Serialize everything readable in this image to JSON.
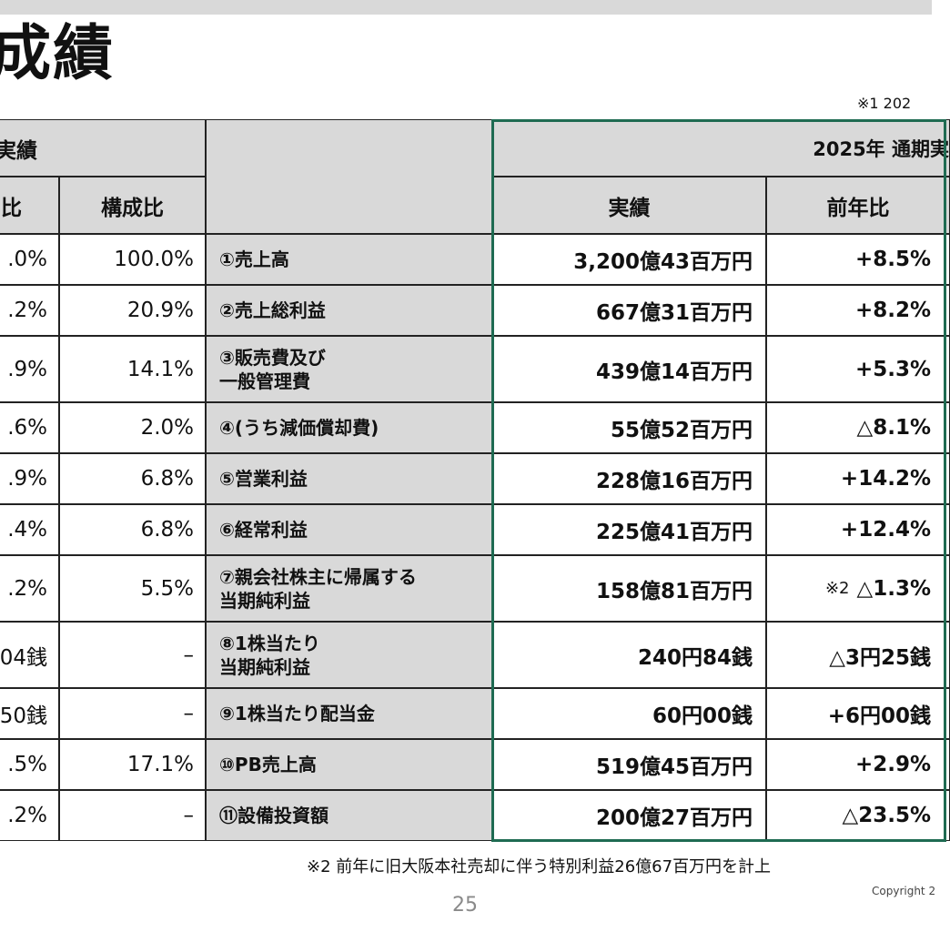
{
  "header": {
    "title": "成績",
    "note1": "※1 202",
    "note2": "※2 前年に旧大阪本社売却に伴う特別利益26億67百万円を計上",
    "page_number": "25",
    "copyright": "Copyright 2"
  },
  "table": {
    "left_group_header": "実績",
    "left_col1_header": "比",
    "left_col2_header": "構成比",
    "right_group_header": "2025年 通期実",
    "right_col1_header": "実績",
    "right_col2_header": "前年比",
    "rows": [
      {
        "left1": ".0%",
        "left2": "100.0%",
        "label_line1": "①売上高",
        "label_line2": "",
        "actual": "3,200億43百万円",
        "yoy_note": "",
        "yoy": "+8.5%"
      },
      {
        "left1": ".2%",
        "left2": "20.9%",
        "label_line1": "②売上総利益",
        "label_line2": "",
        "actual": "667億31百万円",
        "yoy_note": "",
        "yoy": "+8.2%"
      },
      {
        "left1": ".9%",
        "left2": "14.1%",
        "label_line1": "③販売費及び",
        "label_line2": "一般管理費",
        "actual": "439億14百万円",
        "yoy_note": "",
        "yoy": "+5.3%"
      },
      {
        "left1": ".6%",
        "left2": "2.0%",
        "label_line1": "④(うち減価償却費)",
        "label_line2": "",
        "actual": "55億52百万円",
        "yoy_note": "",
        "yoy": "△8.1%"
      },
      {
        "left1": ".9%",
        "left2": "6.8%",
        "label_line1": "⑤営業利益",
        "label_line2": "",
        "actual": "228億16百万円",
        "yoy_note": "",
        "yoy": "+14.2%"
      },
      {
        "left1": ".4%",
        "left2": "6.8%",
        "label_line1": "⑥経常利益",
        "label_line2": "",
        "actual": "225億41百万円",
        "yoy_note": "",
        "yoy": "+12.4%"
      },
      {
        "left1": ".2%",
        "left2": "5.5%",
        "label_line1": "⑦親会社株主に帰属する",
        "label_line2": "当期純利益",
        "actual": "158億81百万円",
        "yoy_note": "※2",
        "yoy": "△1.3%"
      },
      {
        "left1": "04銭",
        "left2": "–",
        "label_line1": "⑧1株当たり",
        "label_line2": "当期純利益",
        "actual": "240円84銭",
        "yoy_note": "",
        "yoy": "△3円25銭"
      },
      {
        "left1": "50銭",
        "left2": "–",
        "label_line1": "⑨1株当たり配当金",
        "label_line2": "",
        "actual": "60円00銭",
        "yoy_note": "",
        "yoy": "+6円00銭"
      },
      {
        "left1": ".5%",
        "left2": "17.1%",
        "label_line1": "⑩PB売上高",
        "label_line2": "",
        "actual": "519億45百万円",
        "yoy_note": "",
        "yoy": "+2.9%"
      },
      {
        "left1": ".2%",
        "left2": "–",
        "label_line1": "⑪設備投資額",
        "label_line2": "",
        "actual": "200億27百万円",
        "yoy_note": "",
        "yoy": "△23.5%"
      }
    ]
  }
}
